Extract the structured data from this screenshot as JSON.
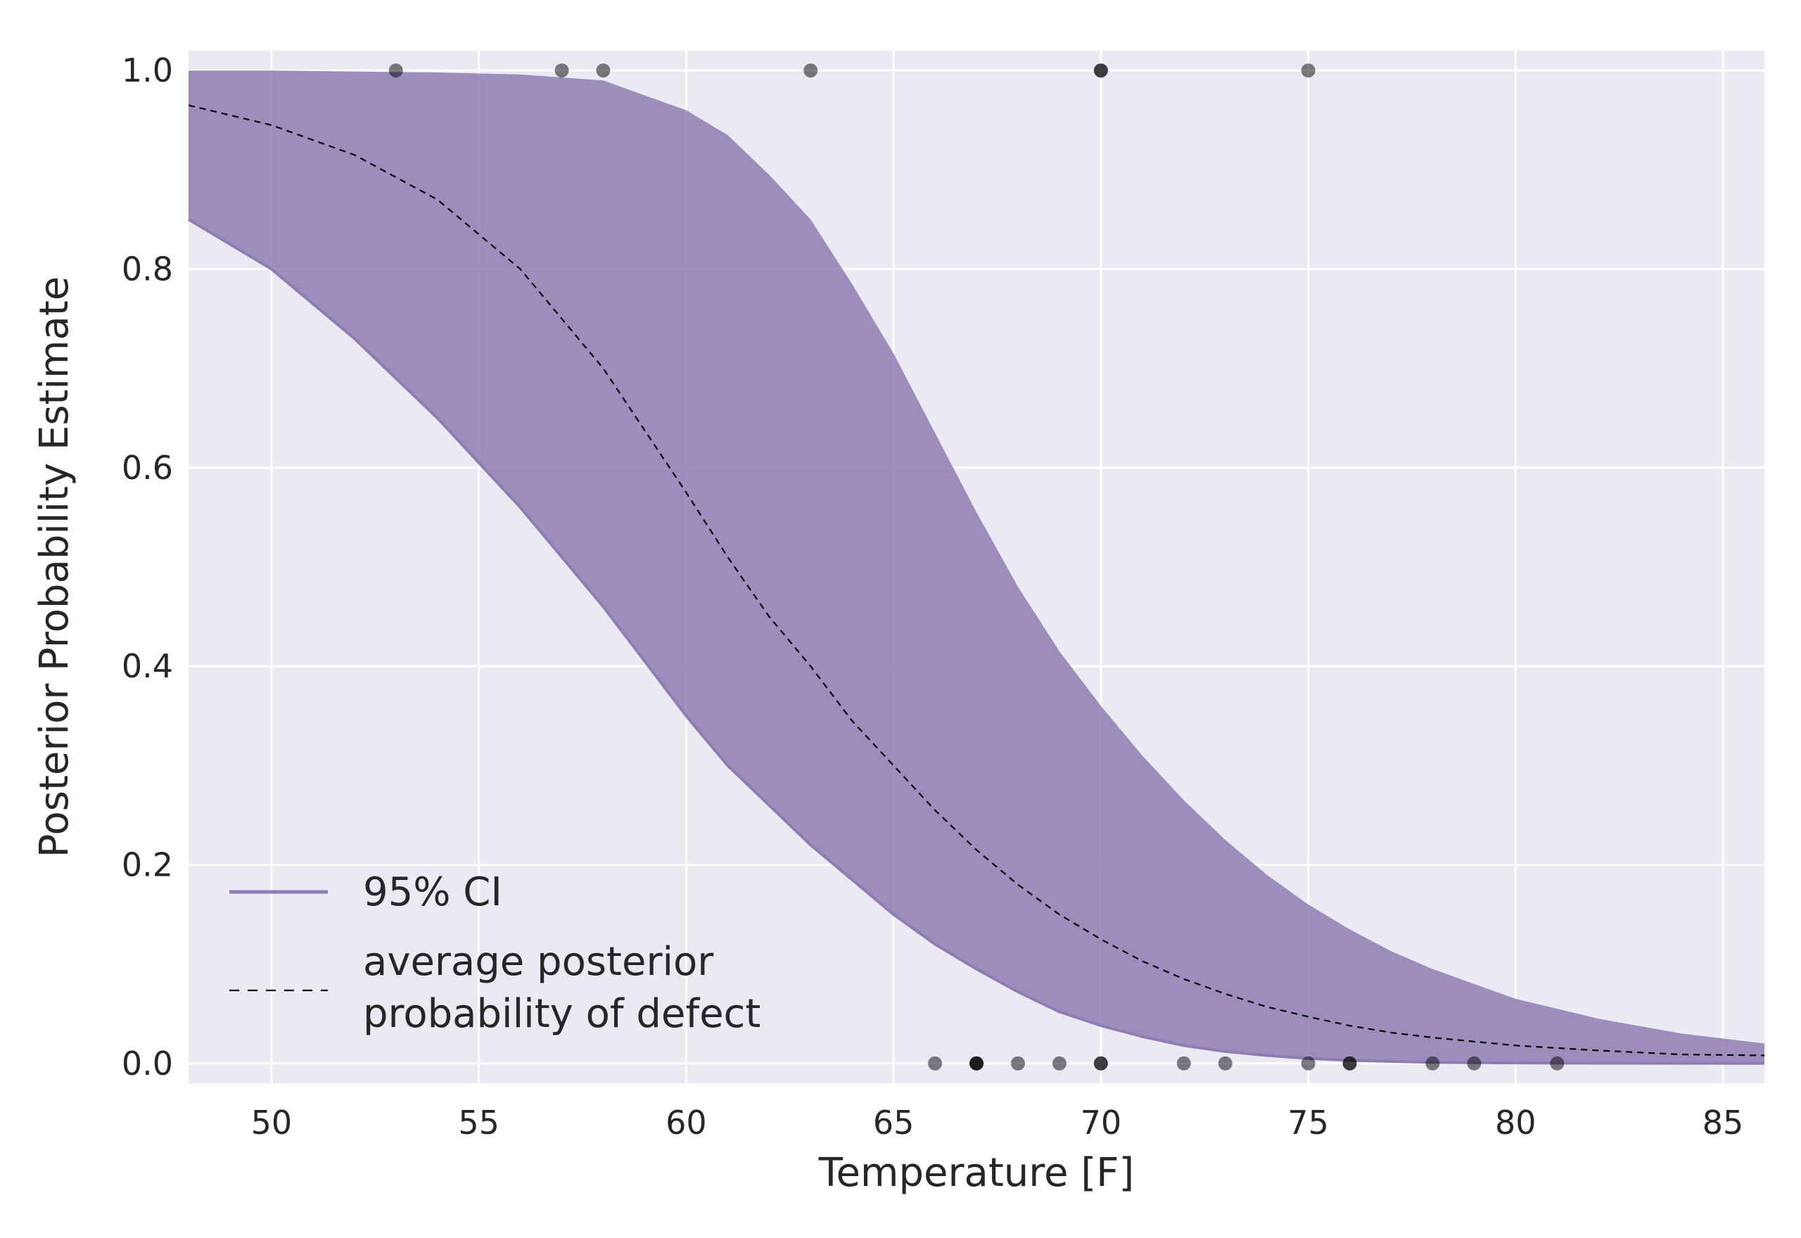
{
  "chart_data": {
    "type": "area",
    "title": "",
    "xlabel": "Temperature [F]",
    "ylabel": "Posterior Probability Estimate",
    "xlim": [
      48,
      86
    ],
    "ylim": [
      -0.02,
      1.02
    ],
    "xticks": [
      50,
      55,
      60,
      65,
      70,
      75,
      80,
      85
    ],
    "yticks": [
      0.0,
      0.2,
      0.4,
      0.6,
      0.8,
      1.0
    ],
    "xtick_labels": [
      "50",
      "55",
      "60",
      "65",
      "70",
      "75",
      "80",
      "85"
    ],
    "ytick_labels": [
      "0.0",
      "0.2",
      "0.4",
      "0.6",
      "0.8",
      "1.0"
    ],
    "grid": true,
    "legend_position": "lower-left",
    "x": [
      48,
      50,
      52,
      54,
      56,
      58,
      60,
      61,
      62,
      63,
      64,
      65,
      66,
      67,
      68,
      69,
      70,
      71,
      72,
      73,
      74,
      75,
      76,
      77,
      78,
      80,
      82,
      84,
      86
    ],
    "series": [
      {
        "name": "95% CI",
        "kind": "band",
        "color": "#8e7cb3",
        "upper": [
          1.0,
          1.0,
          0.999,
          0.998,
          0.996,
          0.99,
          0.96,
          0.935,
          0.895,
          0.85,
          0.785,
          0.715,
          0.635,
          0.555,
          0.48,
          0.415,
          0.36,
          0.31,
          0.265,
          0.225,
          0.19,
          0.16,
          0.135,
          0.113,
          0.095,
          0.065,
          0.045,
          0.03,
          0.02
        ]
      },
      {
        "name": "95% CI",
        "kind": "band-lower",
        "lower": [
          0.85,
          0.8,
          0.73,
          0.65,
          0.56,
          0.46,
          0.35,
          0.3,
          0.26,
          0.22,
          0.185,
          0.15,
          0.12,
          0.095,
          0.072,
          0.052,
          0.038,
          0.027,
          0.018,
          0.012,
          0.008,
          0.005,
          0.003,
          0.002,
          0.001,
          0.0005,
          0.0002,
          0.0001,
          0.0
        ]
      },
      {
        "name": "average posterior\nprobability of defect",
        "kind": "line",
        "color": "#000000",
        "values": [
          0.965,
          0.945,
          0.915,
          0.87,
          0.8,
          0.7,
          0.575,
          0.51,
          0.45,
          0.4,
          0.345,
          0.3,
          0.255,
          0.215,
          0.18,
          0.15,
          0.125,
          0.103,
          0.085,
          0.07,
          0.057,
          0.047,
          0.038,
          0.031,
          0.026,
          0.018,
          0.013,
          0.009,
          0.008
        ]
      }
    ],
    "observations": {
      "color": "#000000",
      "points": [
        {
          "x": 53,
          "y": 1
        },
        {
          "x": 57,
          "y": 1
        },
        {
          "x": 58,
          "y": 1
        },
        {
          "x": 63,
          "y": 1
        },
        {
          "x": 70,
          "y": 1
        },
        {
          "x": 70,
          "y": 1
        },
        {
          "x": 75,
          "y": 1
        },
        {
          "x": 66,
          "y": 0
        },
        {
          "x": 67,
          "y": 0
        },
        {
          "x": 67,
          "y": 0
        },
        {
          "x": 67,
          "y": 0
        },
        {
          "x": 68,
          "y": 0
        },
        {
          "x": 69,
          "y": 0
        },
        {
          "x": 70,
          "y": 0
        },
        {
          "x": 70,
          "y": 0
        },
        {
          "x": 72,
          "y": 0
        },
        {
          "x": 73,
          "y": 0
        },
        {
          "x": 75,
          "y": 0
        },
        {
          "x": 76,
          "y": 0
        },
        {
          "x": 76,
          "y": 0
        },
        {
          "x": 78,
          "y": 0
        },
        {
          "x": 79,
          "y": 0
        },
        {
          "x": 81,
          "y": 0
        }
      ]
    },
    "legend": [
      {
        "label": "95% CI",
        "style": "solid",
        "color": "#8e7cb3"
      },
      {
        "label_lines": [
          "average posterior",
          "probability of defect"
        ],
        "style": "dashed",
        "color": "#000000"
      }
    ],
    "colors": {
      "plot_background": "#eaeaf2",
      "grid": "#ffffff",
      "band": "#8e7cb3"
    }
  }
}
